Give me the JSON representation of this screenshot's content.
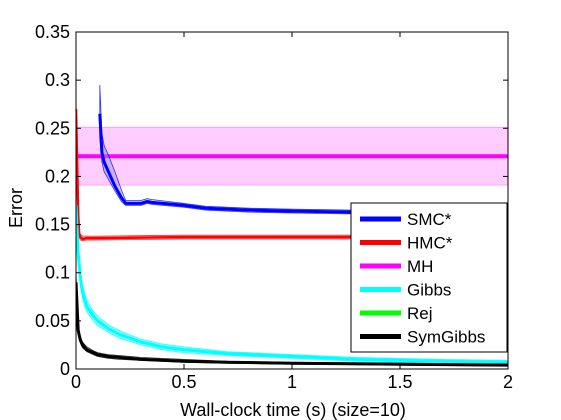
{
  "chart_data": {
    "type": "line",
    "title": "",
    "xlabel": "Wall-clock time (s) (size=10)",
    "ylabel": "Error",
    "xlim": [
      0,
      2
    ],
    "ylim": [
      0,
      0.35
    ],
    "x_ticks": [
      0,
      0.5,
      1,
      1.5,
      2
    ],
    "x_tick_labels": [
      "0",
      "0.5",
      "1",
      "1.5",
      "2"
    ],
    "y_ticks": [
      0,
      0.05,
      0.1,
      0.15,
      0.2,
      0.25,
      0.3,
      0.35
    ],
    "y_tick_labels": [
      "0",
      "0.05",
      "0.1",
      "0.15",
      "0.2",
      "0.25",
      "0.3",
      "0.35"
    ],
    "grid": false,
    "legend_position": "bottom-right",
    "series": [
      {
        "name": "SMC*",
        "color": "#0000ff",
        "band_color": "#8c8cff",
        "x": [
          0.11,
          0.12,
          0.13,
          0.15,
          0.18,
          0.21,
          0.23,
          0.3,
          0.33,
          0.35,
          0.5,
          0.6,
          0.8,
          1.0,
          1.3,
          1.6,
          2.0
        ],
        "y": [
          0.265,
          0.225,
          0.215,
          0.205,
          0.19,
          0.178,
          0.172,
          0.172,
          0.174,
          0.173,
          0.17,
          0.167,
          0.165,
          0.164,
          0.163,
          0.162,
          0.162
        ],
        "lower": [
          0.24,
          0.215,
          0.205,
          0.197,
          0.185,
          0.174,
          0.17,
          0.17,
          0.172,
          0.171,
          0.168,
          0.165,
          0.163,
          0.162,
          0.161,
          0.16,
          0.16
        ],
        "upper": [
          0.295,
          0.245,
          0.232,
          0.222,
          0.205,
          0.186,
          0.175,
          0.175,
          0.177,
          0.176,
          0.172,
          0.169,
          0.167,
          0.166,
          0.165,
          0.164,
          0.164
        ]
      },
      {
        "name": "HMC*",
        "color": "#ff0000",
        "band_color": "#ff8c8c",
        "x": [
          0.0,
          0.01,
          0.015,
          0.02,
          0.03,
          0.05,
          0.1,
          0.5,
          1.0,
          1.5,
          2.0
        ],
        "y": [
          0.27,
          0.16,
          0.14,
          0.137,
          0.135,
          0.136,
          0.136,
          0.137,
          0.137,
          0.137,
          0.137
        ],
        "lower": [
          0.265,
          0.155,
          0.137,
          0.134,
          0.133,
          0.134,
          0.134,
          0.135,
          0.135,
          0.135,
          0.135
        ],
        "upper": [
          0.275,
          0.165,
          0.143,
          0.14,
          0.138,
          0.138,
          0.138,
          0.139,
          0.139,
          0.139,
          0.139
        ]
      },
      {
        "name": "MH",
        "color": "#ff00ff",
        "band_color": "#ffc8ff",
        "x": [
          0.0,
          2.0
        ],
        "y": [
          0.221,
          0.221
        ],
        "lower": [
          0.191,
          0.191
        ],
        "upper": [
          0.251,
          0.251
        ]
      },
      {
        "name": "Gibbs",
        "color": "#00ffff",
        "band_color": "#00ffff",
        "x": [
          0.0,
          0.01,
          0.02,
          0.03,
          0.05,
          0.08,
          0.1,
          0.15,
          0.2,
          0.3,
          0.4,
          0.5,
          0.7,
          0.9,
          1.1,
          1.3,
          1.5,
          1.7,
          2.0
        ],
        "y": [
          0.17,
          0.12,
          0.095,
          0.08,
          0.065,
          0.055,
          0.05,
          0.042,
          0.036,
          0.028,
          0.023,
          0.02,
          0.016,
          0.014,
          0.012,
          0.01,
          0.009,
          0.008,
          0.007
        ],
        "lower": [
          0.16,
          0.11,
          0.087,
          0.073,
          0.059,
          0.05,
          0.045,
          0.038,
          0.032,
          0.025,
          0.02,
          0.017,
          0.014,
          0.012,
          0.01,
          0.008,
          0.007,
          0.006,
          0.005
        ],
        "upper": [
          0.18,
          0.13,
          0.103,
          0.087,
          0.071,
          0.06,
          0.055,
          0.046,
          0.04,
          0.031,
          0.026,
          0.023,
          0.018,
          0.016,
          0.014,
          0.012,
          0.011,
          0.01,
          0.009
        ]
      },
      {
        "name": "Rej",
        "color": "#00ff00",
        "band_color": "#00ff00",
        "x": [],
        "y": [],
        "lower": [],
        "upper": []
      },
      {
        "name": "SymGibbs",
        "color": "#000000",
        "band_color": "#555555",
        "x": [
          0.0,
          0.01,
          0.02,
          0.03,
          0.05,
          0.08,
          0.1,
          0.15,
          0.2,
          0.3,
          0.5,
          0.7,
          1.0,
          1.5,
          2.0
        ],
        "y": [
          0.09,
          0.04,
          0.03,
          0.025,
          0.02,
          0.017,
          0.015,
          0.013,
          0.012,
          0.01,
          0.008,
          0.007,
          0.006,
          0.005,
          0.004
        ],
        "lower": [
          0.08,
          0.036,
          0.027,
          0.022,
          0.018,
          0.015,
          0.013,
          0.011,
          0.01,
          0.009,
          0.007,
          0.006,
          0.005,
          0.004,
          0.003
        ],
        "upper": [
          0.1,
          0.045,
          0.034,
          0.028,
          0.023,
          0.019,
          0.017,
          0.015,
          0.014,
          0.012,
          0.01,
          0.008,
          0.007,
          0.006,
          0.005
        ]
      }
    ]
  }
}
